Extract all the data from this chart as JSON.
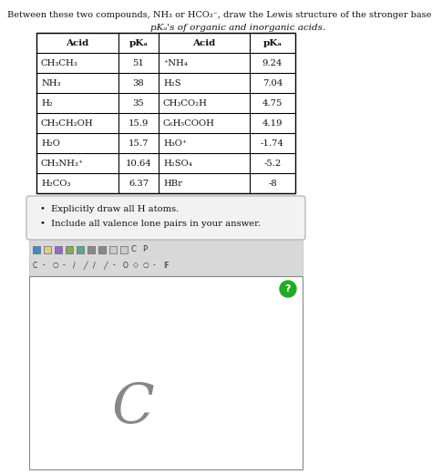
{
  "title_line1": "Between these two compounds, NH₃ or HCO₃⁻, draw the Lewis structure of the stronger base.",
  "subtitle": "pΚₐ's of organic and inorganic acids.",
  "table_headers": [
    "Acid",
    "pΚₐ",
    "Acid",
    "pΚₐ"
  ],
  "table_rows": [
    [
      "CH₃CH₃",
      "51",
      "⁺NH₄",
      "9.24"
    ],
    [
      "NH₃",
      "38",
      "H₂S",
      "7.04"
    ],
    [
      "H₂",
      "35",
      "CH₃CO₂H",
      "4.75"
    ],
    [
      "CH₃CH₂OH",
      "15.9",
      "C₆H₅COOH",
      "4.19"
    ],
    [
      "H₂O",
      "15.7",
      "H₃O⁺",
      "-1.74"
    ],
    [
      "CH₃NH₃⁺",
      "10.64",
      "H₂SO₄",
      "-5.2"
    ],
    [
      "H₂CO₃",
      "6.37",
      "HBr",
      "-8"
    ]
  ],
  "bullet_points": [
    "Explicitly draw all H atoms.",
    "Include all valence lone pairs in your answer."
  ],
  "drawing_area_letter": "C",
  "bg": "#ffffff",
  "table_border_color": "#000000",
  "toolbar_bg": "#d8d8d8",
  "answer_bg": "#ffffff",
  "answer_border": "#888888",
  "hint_box_bg": "#f2f2f2",
  "hint_box_border": "#aaaaaa",
  "green_circle_color": "#22aa22",
  "text_color": "#111111",
  "C_color": "#888888"
}
